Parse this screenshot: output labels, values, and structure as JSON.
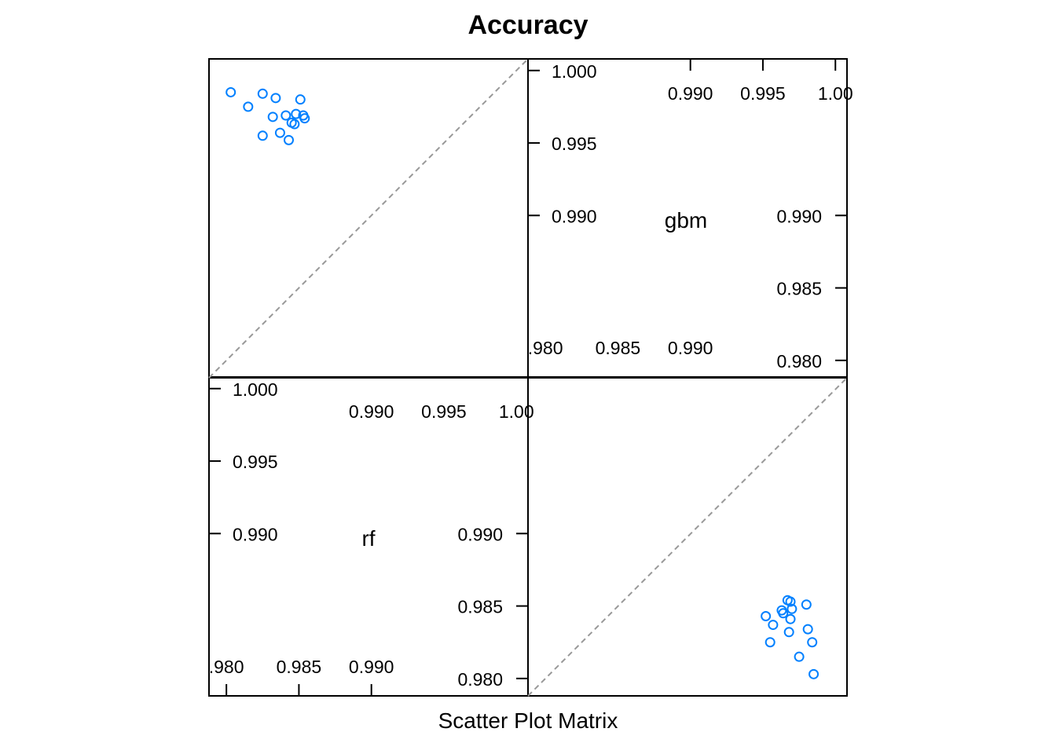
{
  "chart_data": {
    "type": "scatter",
    "title": "Accuracy",
    "xlabel": "Scatter Plot Matrix",
    "variables": [
      "rf",
      "gbm"
    ],
    "axis_range": [
      0.9788,
      1.0008
    ],
    "ticks": {
      "outer": [
        "1.000",
        "0.995",
        "0.990",
        "0.985",
        "0.980"
      ],
      "inner_top": [
        "0.990",
        "0.995",
        "1.00"
      ],
      "inner_bottom": [
        ".980",
        "0.985",
        "0.990"
      ]
    },
    "diagonal_reference_line": true,
    "point_color": "#0080ff",
    "line_color": "#999999",
    "points": [
      {
        "rf": 0.9981,
        "gbm": 0.9834
      },
      {
        "rf": 0.9984,
        "gbm": 0.9825
      },
      {
        "rf": 0.9968,
        "gbm": 0.9832
      },
      {
        "rf": 0.9975,
        "gbm": 0.9815
      },
      {
        "rf": 0.9957,
        "gbm": 0.9837
      },
      {
        "rf": 0.9985,
        "gbm": 0.9803
      },
      {
        "rf": 0.997,
        "gbm": 0.9848
      },
      {
        "rf": 0.998,
        "gbm": 0.9851
      },
      {
        "rf": 0.9969,
        "gbm": 0.9853
      },
      {
        "rf": 0.9952,
        "gbm": 0.9843
      },
      {
        "rf": 0.9955,
        "gbm": 0.9825
      },
      {
        "rf": 0.9963,
        "gbm": 0.9847
      },
      {
        "rf": 0.9969,
        "gbm": 0.9841
      },
      {
        "rf": 0.9964,
        "gbm": 0.9845
      },
      {
        "rf": 0.9967,
        "gbm": 0.9854
      }
    ]
  }
}
